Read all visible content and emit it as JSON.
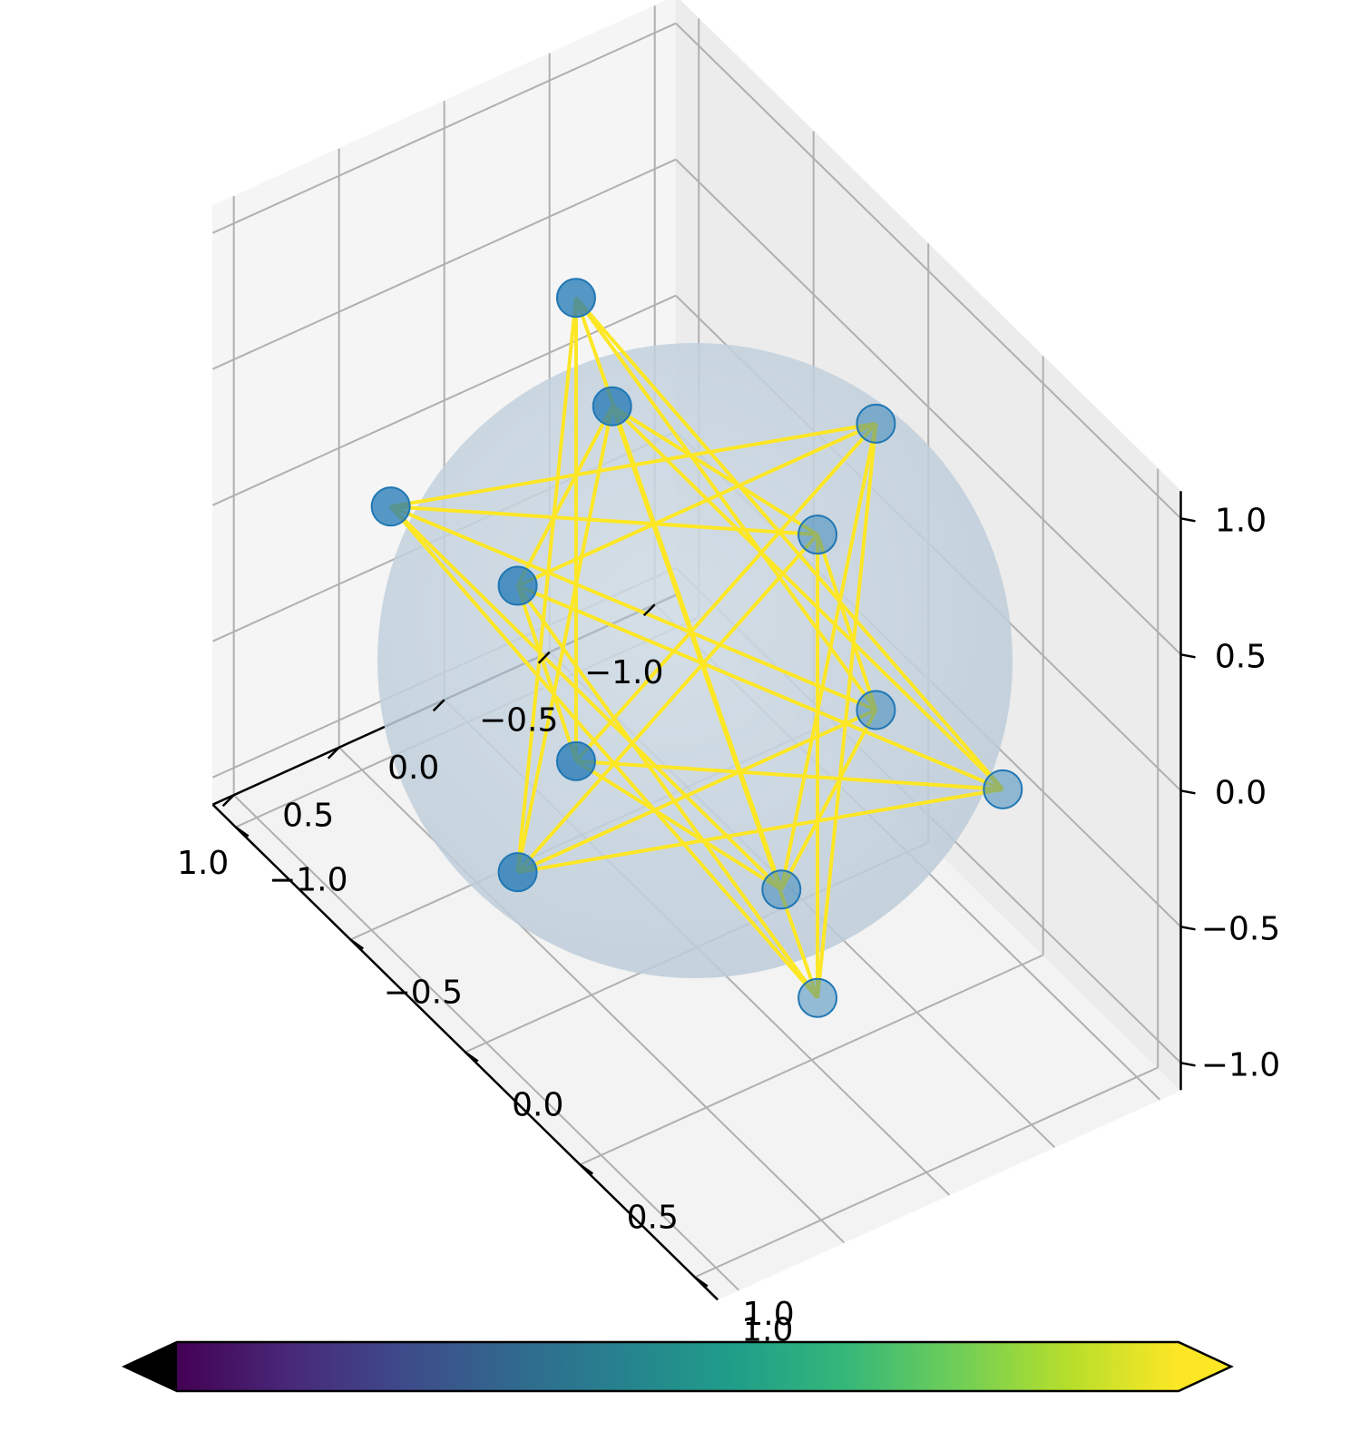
{
  "chart_data": {
    "type": "scatter3d",
    "title": "",
    "xlabel": "",
    "ylabel": "",
    "zlabel": "",
    "xlim": [
      -1.1,
      1.1
    ],
    "ylim": [
      -1.1,
      1.1
    ],
    "zlim": [
      -1.1,
      1.1
    ],
    "grid": true,
    "sphere": {
      "radius": 1.0,
      "color": "#a7c0d6"
    },
    "points": [
      {
        "x": 0.0,
        "y": 0.526,
        "z": 0.851
      },
      {
        "x": 0.0,
        "y": -0.526,
        "z": 0.851
      },
      {
        "x": 0.0,
        "y": 0.526,
        "z": -0.851
      },
      {
        "x": 0.0,
        "y": -0.526,
        "z": -0.851
      },
      {
        "x": 0.526,
        "y": 0.851,
        "z": 0.0
      },
      {
        "x": -0.526,
        "y": 0.851,
        "z": 0.0
      },
      {
        "x": 0.526,
        "y": -0.851,
        "z": 0.0
      },
      {
        "x": -0.526,
        "y": -0.851,
        "z": 0.0
      },
      {
        "x": 0.851,
        "y": 0.0,
        "z": 0.526
      },
      {
        "x": -0.851,
        "y": 0.0,
        "z": 0.526
      },
      {
        "x": 0.851,
        "y": 0.0,
        "z": -0.526
      },
      {
        "x": -0.851,
        "y": 0.0,
        "z": -0.526
      }
    ],
    "point_color": "#1f77b4",
    "line_color": "#fde725",
    "x_ticks": [
      -1.0,
      -0.5,
      0.0,
      0.5,
      1.0
    ],
    "y_ticks": [
      -1.0,
      -0.5,
      0.0,
      0.5,
      1.0
    ],
    "z_ticks": [
      -1.0,
      -0.5,
      0.0,
      0.5,
      1.0
    ],
    "x_tick_labels": [
      "−1.0",
      "−0.5",
      "0.0",
      "0.5",
      "1.0"
    ],
    "y_tick_labels": [
      "−1.0",
      "−0.5",
      "0.0",
      "0.5",
      "1.0"
    ],
    "z_tick_labels": [
      "−1.0",
      "−0.5",
      "0.0",
      "0.5",
      "1.0"
    ],
    "colorbar": {
      "colormap": "viridis",
      "extend": "both",
      "tick_label": "1.0",
      "under_color": "#000000",
      "over_color": "#fde725",
      "colors": [
        "#440154",
        "#482878",
        "#3e4989",
        "#31688e",
        "#26828e",
        "#1f9e89",
        "#35b779",
        "#6ece58",
        "#b5de2b",
        "#fde725"
      ]
    }
  }
}
